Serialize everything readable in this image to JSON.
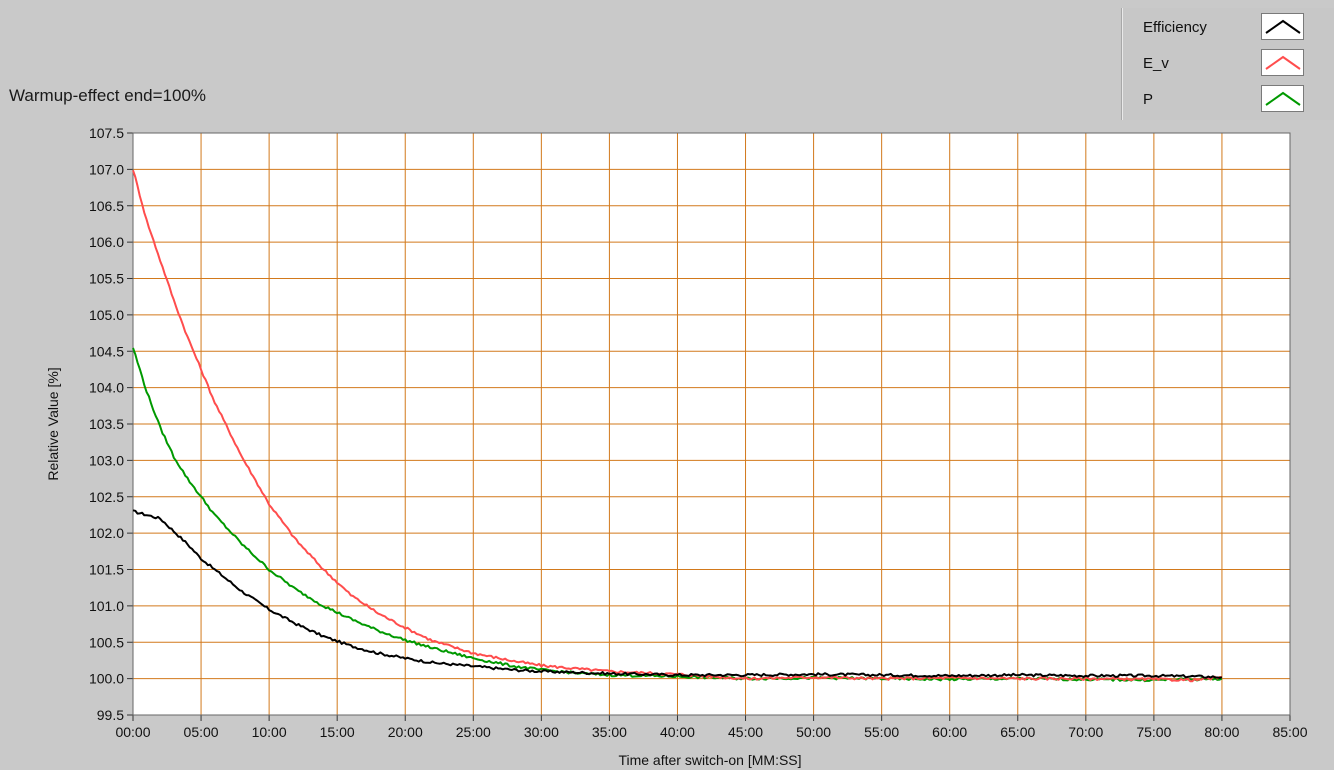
{
  "header": {
    "title": "Warmup-effect end=100%"
  },
  "legend": {
    "items": [
      {
        "label": "Efficiency",
        "color": "#000000",
        "icon": "line-swatch-icon"
      },
      {
        "label": "E_v",
        "color": "#ff4d4d",
        "icon": "line-swatch-icon"
      },
      {
        "label": "P",
        "color": "#009900",
        "icon": "line-swatch-icon"
      }
    ]
  },
  "colors": {
    "plot_background": "#ffffff",
    "grid": "#d2791b",
    "panel": "#c9c9c9"
  },
  "chart_data": {
    "type": "line",
    "title": "Warmup-effect end=100%",
    "xlabel": "Time after switch-on [MM:SS]",
    "ylabel": "Relative Value [%]",
    "xlim": [
      0,
      85
    ],
    "ylim": [
      99.5,
      107.5
    ],
    "x_unit": "minutes",
    "x_ticks": [
      "00:00",
      "05:00",
      "10:00",
      "15:00",
      "20:00",
      "25:00",
      "30:00",
      "35:00",
      "40:00",
      "45:00",
      "50:00",
      "55:00",
      "60:00",
      "65:00",
      "70:00",
      "75:00",
      "80:00",
      "85:00"
    ],
    "y_ticks": [
      "99.5",
      "100.0",
      "100.5",
      "101.0",
      "101.5",
      "102.0",
      "102.5",
      "103.0",
      "103.5",
      "104.0",
      "104.5",
      "105.0",
      "105.5",
      "106.0",
      "106.5",
      "107.0",
      "107.5"
    ],
    "grid": true,
    "legend_position": "top-right",
    "series": [
      {
        "name": "Efficiency",
        "color": "#000000",
        "x": [
          0,
          2,
          4,
          5,
          6,
          8,
          10,
          12,
          14,
          16,
          18,
          20,
          22,
          25,
          28,
          30,
          35,
          40,
          45,
          50,
          55,
          60,
          65,
          70,
          75,
          78,
          80
        ],
        "y": [
          102.3,
          102.2,
          101.85,
          101.65,
          101.5,
          101.2,
          100.95,
          100.75,
          100.58,
          100.45,
          100.35,
          100.28,
          100.22,
          100.17,
          100.12,
          100.1,
          100.07,
          100.05,
          100.05,
          100.06,
          100.05,
          100.04,
          100.05,
          100.04,
          100.04,
          100.03,
          100.02
        ]
      },
      {
        "name": "E_v",
        "color": "#ff4d4d",
        "x": [
          0,
          1,
          2,
          3,
          4,
          5,
          6,
          8,
          10,
          12,
          14,
          16,
          18,
          20,
          22,
          25,
          28,
          30,
          33,
          35,
          40,
          45,
          50,
          55,
          60,
          65,
          70,
          75,
          78,
          80
        ],
        "y": [
          107.0,
          106.3,
          105.75,
          105.2,
          104.7,
          104.25,
          103.8,
          103.05,
          102.4,
          101.9,
          101.5,
          101.15,
          100.9,
          100.7,
          100.52,
          100.35,
          100.24,
          100.18,
          100.13,
          100.1,
          100.06,
          100.0,
          100.02,
          100.0,
          100.01,
          100.0,
          100.0,
          99.99,
          99.98,
          100.02
        ]
      },
      {
        "name": "P",
        "color": "#009900",
        "x": [
          0,
          1,
          2,
          3,
          4,
          5,
          6,
          8,
          10,
          12,
          14,
          16,
          18,
          20,
          22,
          25,
          28,
          30,
          33,
          35,
          40,
          45,
          50,
          55,
          60,
          65,
          70,
          75,
          78,
          80
        ],
        "y": [
          104.55,
          103.95,
          103.45,
          103.05,
          102.75,
          102.5,
          102.25,
          101.85,
          101.5,
          101.22,
          101.0,
          100.82,
          100.66,
          100.53,
          100.42,
          100.28,
          100.17,
          100.12,
          100.07,
          100.05,
          100.03,
          100.0,
          100.01,
          100.0,
          99.99,
          100.0,
          99.99,
          99.98,
          99.99,
          100.0
        ]
      }
    ]
  }
}
